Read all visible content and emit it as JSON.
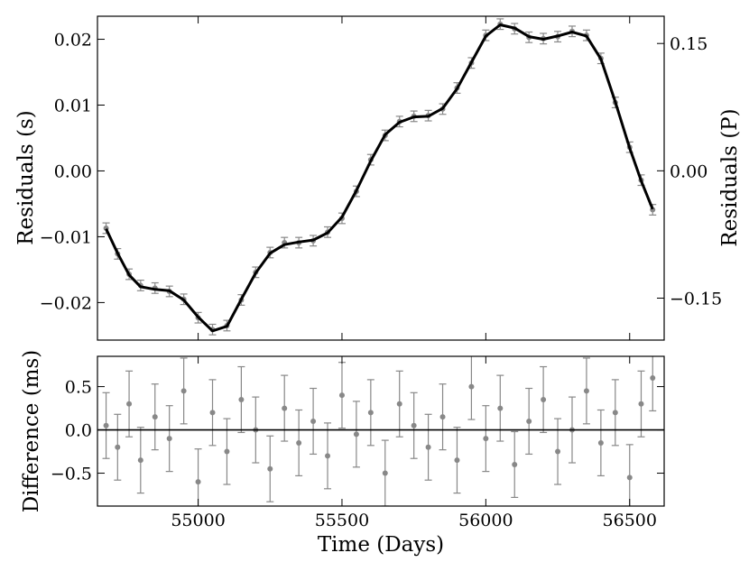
{
  "chart_data": [
    {
      "type": "scatter",
      "panel": "top",
      "xlabel": "",
      "ylabel": "Residuals (s)",
      "ylabel_right": "Residuals (P)",
      "xlim": [
        54650,
        56620
      ],
      "ylim": [
        -0.0257,
        0.0235
      ],
      "ylim_right": [
        -0.1994,
        0.1821
      ],
      "yticks": [
        -0.02,
        -0.01,
        0.0,
        0.01,
        0.02
      ],
      "ytick_labels": [
        "−0.02",
        "−0.01",
        "0.00",
        "0.01",
        "0.02"
      ],
      "yticks_right": [
        -0.15,
        0.0,
        0.15
      ],
      "ytick_labels_right": [
        "−0.15",
        "0.00",
        "0.15"
      ],
      "xticks": [
        55000,
        55500,
        56000,
        56500
      ],
      "xtick_labels": [],
      "grid": false,
      "model_curve": {
        "x": [
          54680,
          54720,
          54760,
          54800,
          54850,
          54900,
          54950,
          55000,
          55050,
          55100,
          55150,
          55200,
          55250,
          55300,
          55350,
          55400,
          55450,
          55500,
          55550,
          55600,
          55650,
          55700,
          55750,
          55800,
          55850,
          55900,
          55950,
          56000,
          56050,
          56100,
          56150,
          56200,
          56250,
          56300,
          56350,
          56400,
          56450,
          56500,
          56540,
          56580
        ],
        "y": [
          -0.0088,
          -0.0125,
          -0.0158,
          -0.0176,
          -0.018,
          -0.0182,
          -0.0196,
          -0.0222,
          -0.0243,
          -0.0236,
          -0.0195,
          -0.0155,
          -0.0125,
          -0.0112,
          -0.0108,
          -0.0105,
          -0.0094,
          -0.007,
          -0.003,
          0.0015,
          0.0055,
          0.0074,
          0.0082,
          0.0083,
          0.0095,
          0.0125,
          0.0165,
          0.0205,
          0.0222,
          0.0217,
          0.0204,
          0.02,
          0.0205,
          0.0211,
          0.0205,
          0.017,
          0.0105,
          0.0035,
          -0.0015,
          -0.0058
        ]
      },
      "series": [
        {
          "marker": "circle",
          "color": "#888888",
          "x": [
            54680,
            54720,
            54760,
            54800,
            54850,
            54900,
            54950,
            55000,
            55050,
            55100,
            55150,
            55200,
            55250,
            55300,
            55350,
            55400,
            55450,
            55500,
            55550,
            55600,
            55650,
            55700,
            55750,
            55800,
            55850,
            55900,
            55950,
            56000,
            56050,
            56100,
            56150,
            56200,
            56250,
            56300,
            56350,
            56400,
            56450,
            56500,
            56540,
            56580
          ],
          "y": [
            -0.0087,
            -0.0126,
            -0.0157,
            -0.0174,
            -0.0178,
            -0.0183,
            -0.0195,
            -0.0223,
            -0.0241,
            -0.0235,
            -0.0196,
            -0.0154,
            -0.0124,
            -0.0109,
            -0.0109,
            -0.0106,
            -0.0093,
            -0.0072,
            -0.0031,
            0.0017,
            0.0054,
            0.0075,
            0.0083,
            0.0084,
            0.0094,
            0.0126,
            0.0164,
            0.0206,
            0.0223,
            0.0216,
            0.0203,
            0.0201,
            0.0204,
            0.0212,
            0.0206,
            0.0171,
            0.0104,
            0.0036,
            -0.0014,
            -0.0059
          ],
          "yerr": 0.0008
        }
      ]
    },
    {
      "type": "scatter",
      "panel": "bottom",
      "xlabel": "Time (Days)",
      "ylabel": "Difference (ms)",
      "xlim": [
        54650,
        56620
      ],
      "ylim": [
        -0.88,
        0.85
      ],
      "yticks": [
        -0.5,
        0.0,
        0.5
      ],
      "ytick_labels": [
        "−0.5",
        "0.0",
        "0.5"
      ],
      "xticks": [
        55000,
        55500,
        56000,
        56500
      ],
      "xtick_labels": [
        "55000",
        "55500",
        "56000",
        "56500"
      ],
      "grid": false,
      "zero_line": 0.0,
      "series": [
        {
          "marker": "circle",
          "color": "#888888",
          "x": [
            54680,
            54720,
            54760,
            54800,
            54850,
            54900,
            54950,
            55000,
            55050,
            55100,
            55150,
            55200,
            55250,
            55300,
            55350,
            55400,
            55450,
            55500,
            55550,
            55600,
            55650,
            55700,
            55750,
            55800,
            55850,
            55900,
            55950,
            56000,
            56050,
            56100,
            56150,
            56200,
            56250,
            56300,
            56350,
            56400,
            56450,
            56500,
            56540,
            56580
          ],
          "y": [
            0.05,
            -0.2,
            0.3,
            -0.35,
            0.15,
            -0.1,
            0.45,
            -0.6,
            0.2,
            -0.25,
            0.35,
            0.0,
            -0.45,
            0.25,
            -0.15,
            0.1,
            -0.3,
            0.4,
            -0.05,
            0.2,
            -0.5,
            0.3,
            0.05,
            -0.2,
            0.15,
            -0.35,
            0.5,
            -0.1,
            0.25,
            -0.4,
            0.1,
            0.35,
            -0.25,
            0.0,
            0.45,
            -0.15,
            0.2,
            -0.55,
            0.3,
            0.6
          ],
          "yerr": 0.38
        }
      ]
    }
  ]
}
